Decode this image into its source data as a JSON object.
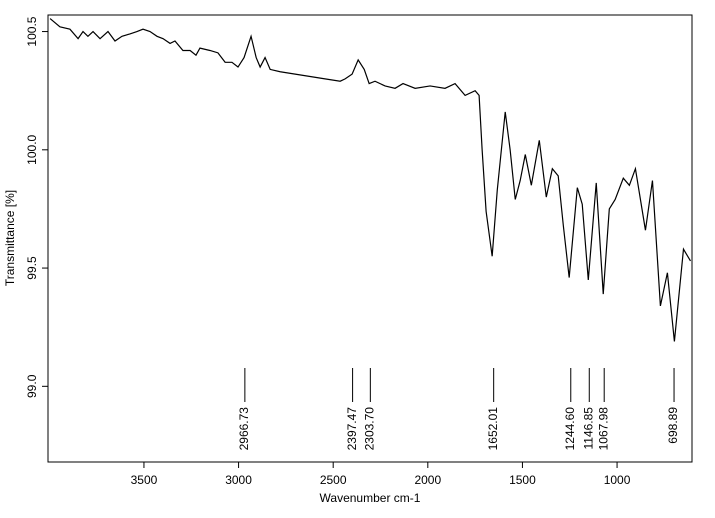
{
  "chart_data": {
    "type": "line",
    "xlabel": "Wavenumber cm-1",
    "ylabel": "Transmittance [%]",
    "xlim": [
      4007,
      604
    ],
    "ylim": [
      98.68,
      100.57
    ],
    "xticks": [
      3500,
      3000,
      2500,
      2000,
      1500,
      1000
    ],
    "yticks": [
      {
        "value": 100.5,
        "label": "100.5"
      },
      {
        "value": 100.0,
        "label": "100.0"
      },
      {
        "value": 99.5,
        "label": "99.5"
      },
      {
        "value": 99.0,
        "label": "99.0"
      }
    ],
    "color": "#000000",
    "x": [
      3996,
      3944,
      3891,
      3848,
      3822,
      3796,
      3769,
      3732,
      3690,
      3653,
      3616,
      3574,
      3537,
      3505,
      3468,
      3431,
      3399,
      3362,
      3336,
      3294,
      3256,
      3225,
      3204,
      3151,
      3109,
      3071,
      3035,
      3003,
      2971,
      2934,
      2907,
      2886,
      2860,
      2833,
      2780,
      2701,
      2622,
      2543,
      2463,
      2437,
      2400,
      2368,
      2336,
      2310,
      2279,
      2226,
      2173,
      2131,
      2067,
      1988,
      1909,
      1856,
      1803,
      1750,
      1729,
      1713,
      1692,
      1660,
      1633,
      1591,
      1565,
      1538,
      1512,
      1485,
      1453,
      1411,
      1374,
      1342,
      1311,
      1284,
      1253,
      1210,
      1184,
      1152,
      1110,
      1073,
      1041,
      1010,
      967,
      935,
      903,
      850,
      813,
      771,
      734,
      697,
      649,
      612
    ],
    "values": [
      100.555,
      100.52,
      100.51,
      100.47,
      100.5,
      100.48,
      100.5,
      100.47,
      100.5,
      100.46,
      100.48,
      100.49,
      100.5,
      100.51,
      100.5,
      100.48,
      100.47,
      100.45,
      100.46,
      100.42,
      100.42,
      100.4,
      100.43,
      100.42,
      100.41,
      100.37,
      100.37,
      100.35,
      100.39,
      100.48,
      100.39,
      100.35,
      100.39,
      100.34,
      100.33,
      100.32,
      100.31,
      100.3,
      100.29,
      100.3,
      100.32,
      100.38,
      100.34,
      100.28,
      100.29,
      100.27,
      100.26,
      100.28,
      100.26,
      100.27,
      100.26,
      100.28,
      100.23,
      100.25,
      100.23,
      100.0,
      99.74,
      99.55,
      99.83,
      100.16,
      100.0,
      99.79,
      99.87,
      99.98,
      99.85,
      100.04,
      99.8,
      99.92,
      99.89,
      99.68,
      99.46,
      99.84,
      99.77,
      99.45,
      99.86,
      99.39,
      99.75,
      99.79,
      99.88,
      99.85,
      99.92,
      99.66,
      99.87,
      99.34,
      99.48,
      99.19,
      99.58,
      99.53
    ],
    "peaks": [
      2966.73,
      2397.47,
      {
        "value": 2303.7,
        "label": "2303.70"
      },
      1652.01,
      {
        "value": 1244.6,
        "label": "1244.60"
      },
      1146.85,
      1067.98,
      698.89
    ]
  }
}
